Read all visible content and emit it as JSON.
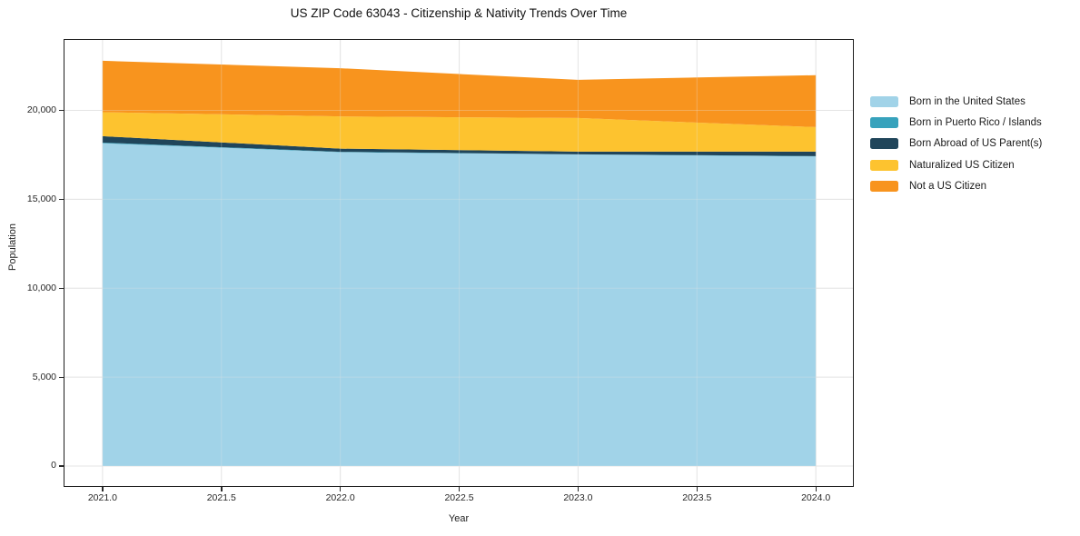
{
  "title": "US ZIP Code 63043 - Citizenship & Nativity Trends Over Time",
  "chart_data": {
    "type": "area",
    "stacked": true,
    "title": "US ZIP Code 63043 - Citizenship & Nativity Trends Over Time",
    "xlabel": "Year",
    "ylabel": "Population",
    "x": [
      2021,
      2022,
      2023,
      2024
    ],
    "series": [
      {
        "name": "Born in the United States",
        "color": "#A1D3E8",
        "values": [
          18150,
          17650,
          17520,
          17410
        ]
      },
      {
        "name": "Born in Puerto Rico / Islands",
        "color": "#37A2BC",
        "values": [
          40,
          20,
          10,
          20
        ]
      },
      {
        "name": "Born Abroad of US Parent(s)",
        "color": "#20455A",
        "values": [
          360,
          180,
          150,
          250
        ]
      },
      {
        "name": "Naturalized US Citizen",
        "color": "#FDC32F",
        "values": [
          1350,
          1810,
          1890,
          1380
        ]
      },
      {
        "name": "Not a US Citizen",
        "color": "#F8941E",
        "values": [
          2890,
          2710,
          2150,
          2920
        ]
      }
    ],
    "totals": [
      22790,
      22370,
      21720,
      21980
    ],
    "xlim": [
      2020.84,
      2024.156
    ],
    "ylim": [
      -1124,
      23960
    ],
    "x_tick_values": [
      2021.0,
      2021.5,
      2022.0,
      2022.5,
      2023.0,
      2023.5,
      2024.0
    ],
    "x_tick_labels": [
      "2021.0",
      "2021.5",
      "2022.0",
      "2022.5",
      "2023.0",
      "2023.5",
      "2024.0"
    ],
    "y_tick_values": [
      0,
      5000,
      10000,
      15000,
      20000
    ],
    "y_tick_labels": [
      "0",
      "5,000",
      "10,000",
      "15,000",
      "20,000"
    ],
    "grid": true,
    "grid_color": "#e4e4e4",
    "legend_position": "right-outside",
    "background": "#ffffff"
  }
}
